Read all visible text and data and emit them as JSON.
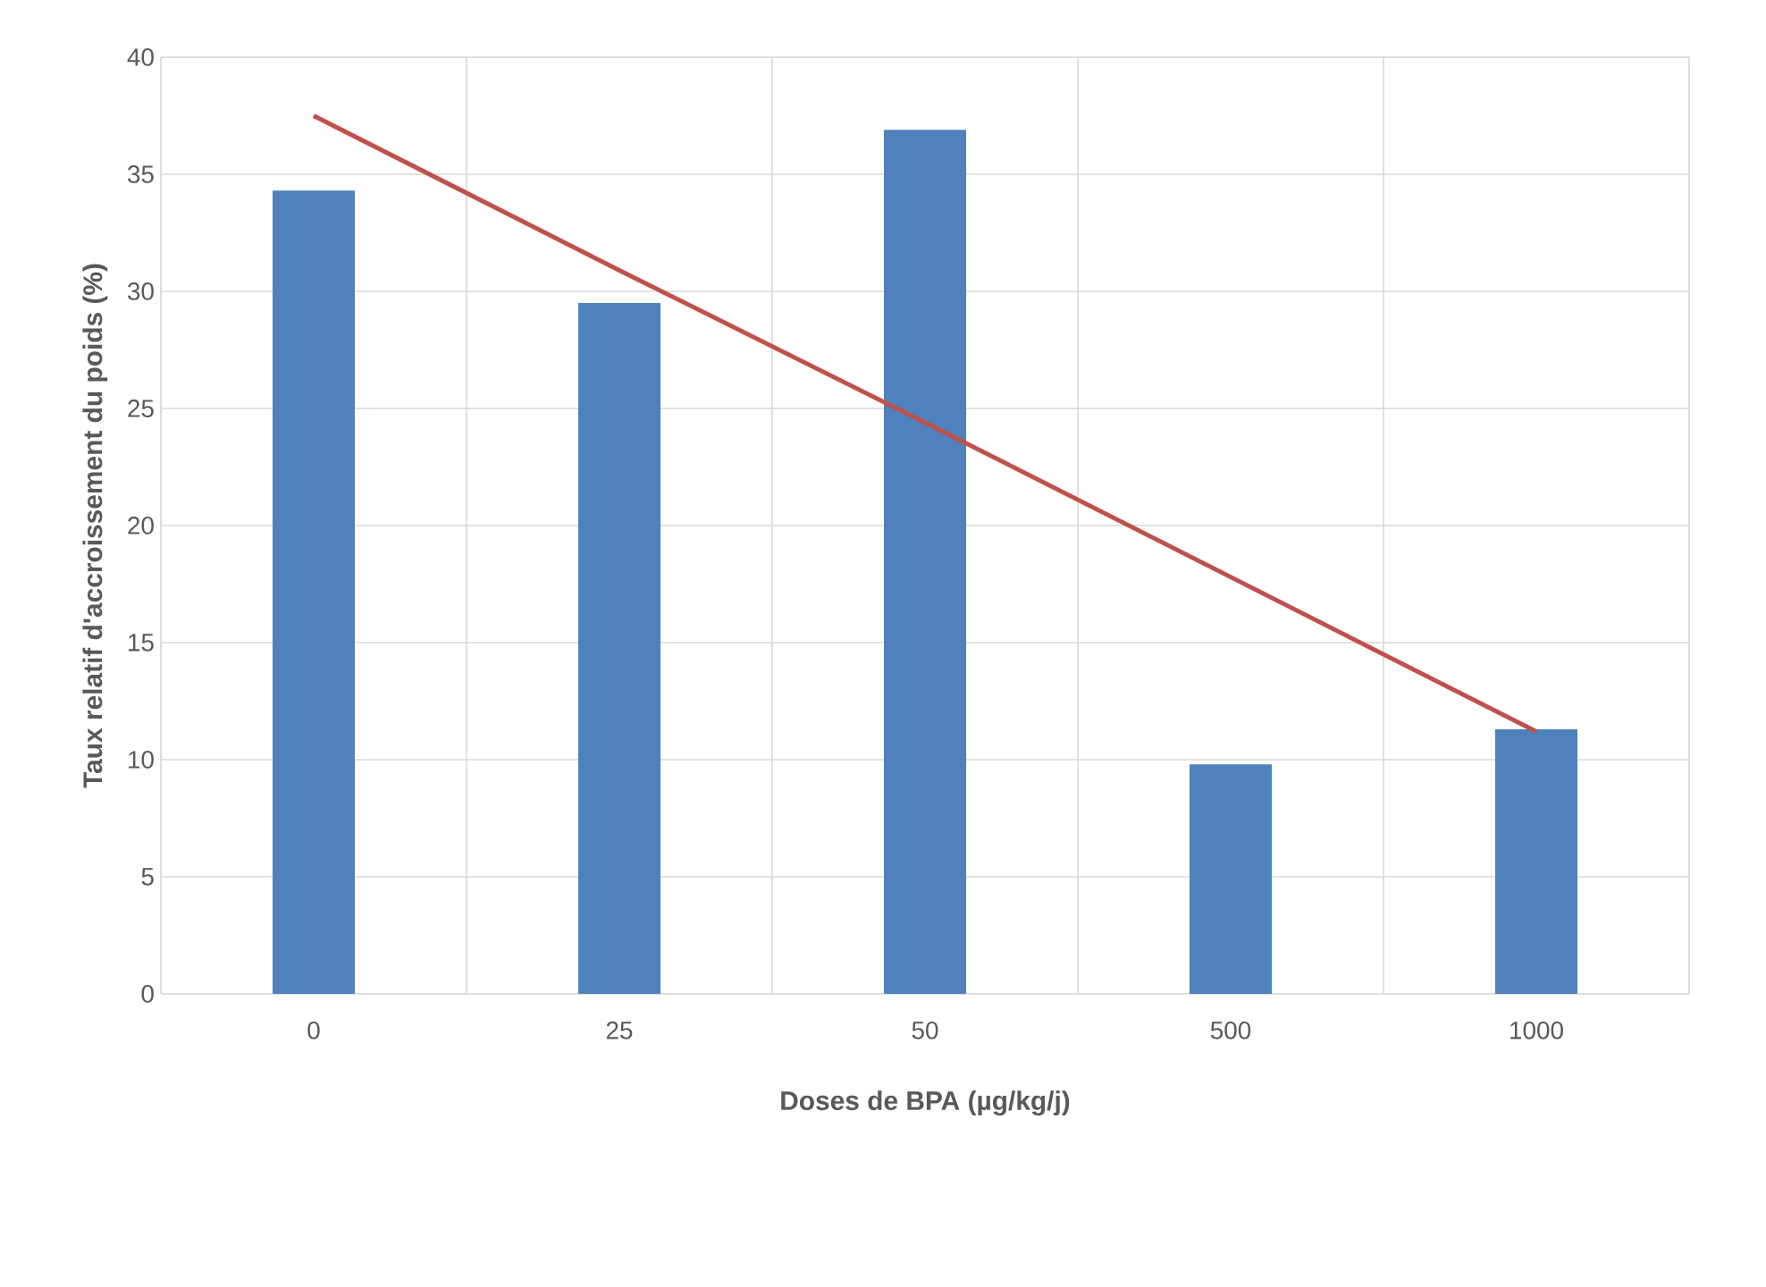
{
  "chart_data": {
    "type": "bar",
    "xlabel": "Doses de BPA (µg/kg/j)",
    "ylabel": "Taux relatif d'accroissement du poids (%)",
    "categories": [
      "0",
      "25",
      "50",
      "500",
      "1000"
    ],
    "series": [
      {
        "color": "#4f81bd",
        "values": [
          34.3,
          29.5,
          36.9,
          9.8,
          11.3
        ]
      },
      {
        "type": "line",
        "color": "#c0504d",
        "values": [
          37.5,
          30.9,
          24.4,
          17.8,
          11.2
        ]
      }
    ],
    "ylim": [
      0,
      40
    ],
    "yticks": [
      0,
      5,
      10,
      15,
      20,
      25,
      30,
      35,
      40
    ],
    "grid": true
  }
}
